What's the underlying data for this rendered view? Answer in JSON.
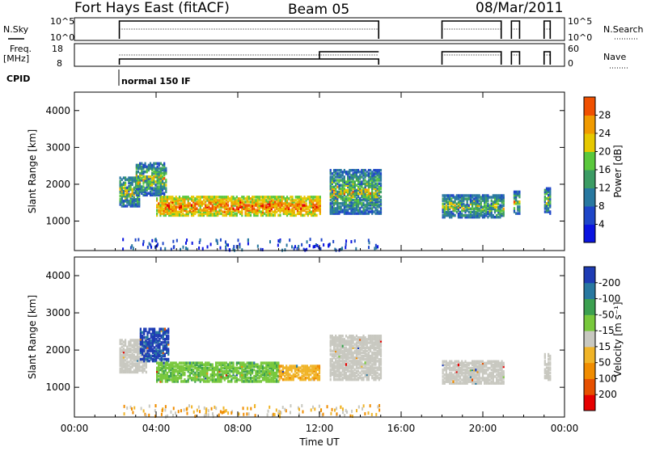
{
  "header": {
    "station": "Fort Hays East (fitACF)",
    "beam": "Beam 05",
    "date": "08/Mar/2011"
  },
  "status_panels": {
    "nsky_label": "N.Sky",
    "nsearch_label": "N.Search",
    "nsky_ticks": [
      "10^5",
      "10^0"
    ],
    "nsearch_ticks": [
      "10^5",
      "10^0"
    ],
    "freq_label": "Freq.",
    "freq_unit": "[MHz]",
    "freq_ticks": [
      "18",
      "8"
    ],
    "nave_label": "Nave",
    "nave_ticks": [
      "60",
      "0"
    ],
    "cpid_label": "CPID",
    "cpid_value": "normal 150 IF"
  },
  "colors": {
    "power_scale": [
      "#0a14e0",
      "#1e46c8",
      "#2878a0",
      "#3c9c64",
      "#5ac83c",
      "#e6c800",
      "#f09a00",
      "#f05000",
      "#e60000"
    ],
    "velocity_scale": [
      "#1e3cb4",
      "#2878a0",
      "#3ca050",
      "#78c83c",
      "#c8c8c0",
      "#f0b428",
      "#f08c00",
      "#e65000",
      "#e60000"
    ]
  },
  "chart_data": [
    {
      "type": "heatmap",
      "name": "power",
      "ylabel": "Slant Range [km]",
      "yticks": [
        "1000",
        "2000",
        "3000",
        "4000"
      ],
      "ylim": [
        200,
        4500
      ],
      "xlim": [
        0,
        24
      ],
      "colorbar_label": "Power [dB]",
      "colorbar_ticks": [
        "4",
        "8",
        "12",
        "16",
        "20",
        "24",
        "28"
      ],
      "colorbar_range": [
        0,
        32
      ],
      "regions": [
        {
          "t0": 2.2,
          "t1": 3.2,
          "r0": 1400,
          "r1": 2200,
          "level": "mid"
        },
        {
          "t0": 3.0,
          "t1": 4.5,
          "r0": 1700,
          "r1": 2600,
          "level": "mid"
        },
        {
          "t0": 4.0,
          "t1": 12.0,
          "r0": 1150,
          "r1": 1650,
          "level": "high"
        },
        {
          "t0": 12.5,
          "t1": 15.0,
          "r0": 1200,
          "r1": 2400,
          "level": "mid"
        },
        {
          "t0": 18.0,
          "t1": 21.0,
          "r0": 1100,
          "r1": 1700,
          "level": "mid"
        },
        {
          "t0": 21.5,
          "t1": 21.8,
          "r0": 1200,
          "r1": 1800,
          "level": "mid"
        },
        {
          "t0": 23.0,
          "t1": 23.3,
          "r0": 1200,
          "r1": 1900,
          "level": "mid"
        }
      ]
    },
    {
      "type": "heatmap",
      "name": "velocity",
      "ylabel": "Slant Range [km]",
      "yticks": [
        "1000",
        "2000",
        "3000",
        "4000"
      ],
      "ylim": [
        200,
        4500
      ],
      "xlim": [
        0,
        24
      ],
      "xlabel": "Time UT",
      "xticks": [
        "00:00",
        "04:00",
        "08:00",
        "12:00",
        "16:00",
        "20:00",
        "00:00"
      ],
      "colorbar_label": "Velocity [m s⁻¹]",
      "colorbar_ticks": [
        "200",
        "100",
        "50",
        "15",
        "-15",
        "-50",
        "-100",
        "-200"
      ],
      "regions": [
        {
          "t0": 2.2,
          "t1": 3.5,
          "r0": 1400,
          "r1": 2300,
          "velocity": "gray"
        },
        {
          "t0": 3.2,
          "t1": 4.6,
          "r0": 1700,
          "r1": 2600,
          "velocity": "blue"
        },
        {
          "t0": 4.0,
          "t1": 10.0,
          "r0": 1150,
          "r1": 1650,
          "velocity": "green"
        },
        {
          "t0": 10.0,
          "t1": 12.0,
          "r0": 1200,
          "r1": 1600,
          "velocity": "orange"
        },
        {
          "t0": 12.5,
          "t1": 15.0,
          "r0": 1200,
          "r1": 2400,
          "velocity": "gray"
        },
        {
          "t0": 18.0,
          "t1": 21.0,
          "r0": 1100,
          "r1": 1700,
          "velocity": "gray"
        },
        {
          "t0": 23.0,
          "t1": 23.3,
          "r0": 1200,
          "r1": 1900,
          "velocity": "gray"
        }
      ]
    }
  ]
}
